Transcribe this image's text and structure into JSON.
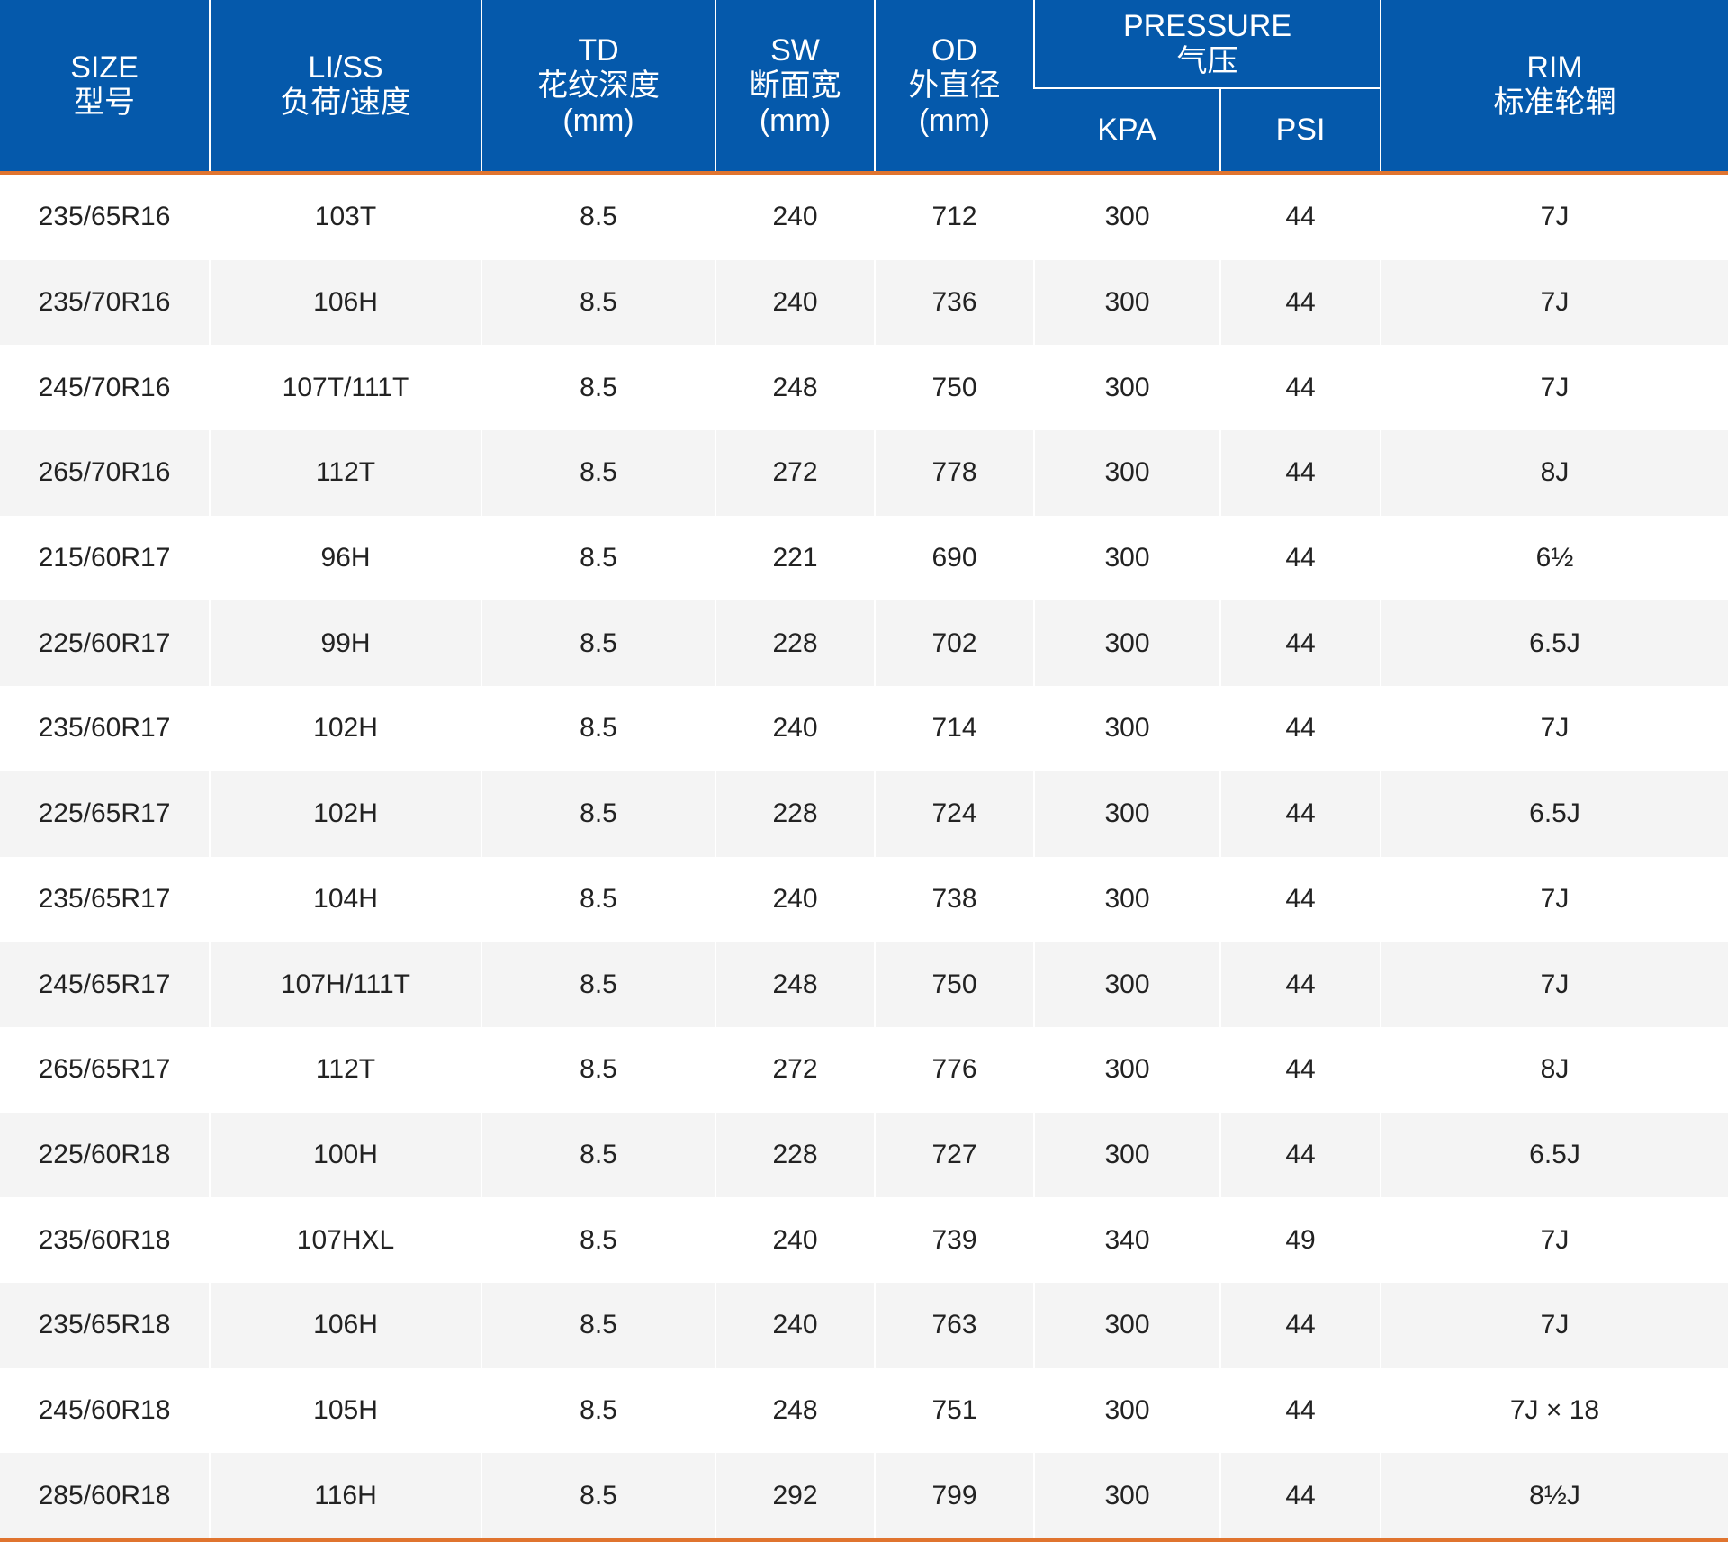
{
  "header": {
    "size": {
      "en": "SIZE",
      "cn": "型号"
    },
    "liss": {
      "en": "LI/SS",
      "cn": "负荷/速度"
    },
    "td": {
      "en": "TD",
      "cn": "花纹深度",
      "unit": "(mm)"
    },
    "sw": {
      "en": "SW",
      "cn": "断面宽",
      "unit": "(mm)"
    },
    "od": {
      "en": "OD",
      "cn": "外直径",
      "unit": "(mm)"
    },
    "pressure": {
      "en": "PRESSURE",
      "cn": "气压",
      "kpa": "KPA",
      "psi": "PSI"
    },
    "rim": {
      "en": "RIM",
      "cn": "标准轮辋"
    }
  },
  "colors": {
    "header_bg": "#0559ab",
    "accent_line": "#e0742f",
    "stripe": "#f4f4f4"
  },
  "rows": [
    [
      "235/65R16",
      "103T",
      "8.5",
      "240",
      "712",
      "300",
      "44",
      "7J"
    ],
    [
      "235/70R16",
      "106H",
      "8.5",
      "240",
      "736",
      "300",
      "44",
      "7J"
    ],
    [
      "245/70R16",
      "107T/111T",
      "8.5",
      "248",
      "750",
      "300",
      "44",
      "7J"
    ],
    [
      "265/70R16",
      "112T",
      "8.5",
      "272",
      "778",
      "300",
      "44",
      "8J"
    ],
    [
      "215/60R17",
      "96H",
      "8.5",
      "221",
      "690",
      "300",
      "44",
      "6½"
    ],
    [
      "225/60R17",
      "99H",
      "8.5",
      "228",
      "702",
      "300",
      "44",
      "6.5J"
    ],
    [
      "235/60R17",
      "102H",
      "8.5",
      "240",
      "714",
      "300",
      "44",
      "7J"
    ],
    [
      "225/65R17",
      "102H",
      "8.5",
      "228",
      "724",
      "300",
      "44",
      "6.5J"
    ],
    [
      "235/65R17",
      "104H",
      "8.5",
      "240",
      "738",
      "300",
      "44",
      "7J"
    ],
    [
      "245/65R17",
      "107H/111T",
      "8.5",
      "248",
      "750",
      "300",
      "44",
      "7J"
    ],
    [
      "265/65R17",
      "112T",
      "8.5",
      "272",
      "776",
      "300",
      "44",
      "8J"
    ],
    [
      "225/60R18",
      "100H",
      "8.5",
      "228",
      "727",
      "300",
      "44",
      "6.5J"
    ],
    [
      "235/60R18",
      "107HXL",
      "8.5",
      "240",
      "739",
      "340",
      "49",
      "7J"
    ],
    [
      "235/65R18",
      "106H",
      "8.5",
      "240",
      "763",
      "300",
      "44",
      "7J"
    ],
    [
      "245/60R18",
      "105H",
      "8.5",
      "248",
      "751",
      "300",
      "44",
      "7J × 18"
    ],
    [
      "285/60R18",
      "116H",
      "8.5",
      "292",
      "799",
      "300",
      "44",
      "8½J"
    ]
  ]
}
